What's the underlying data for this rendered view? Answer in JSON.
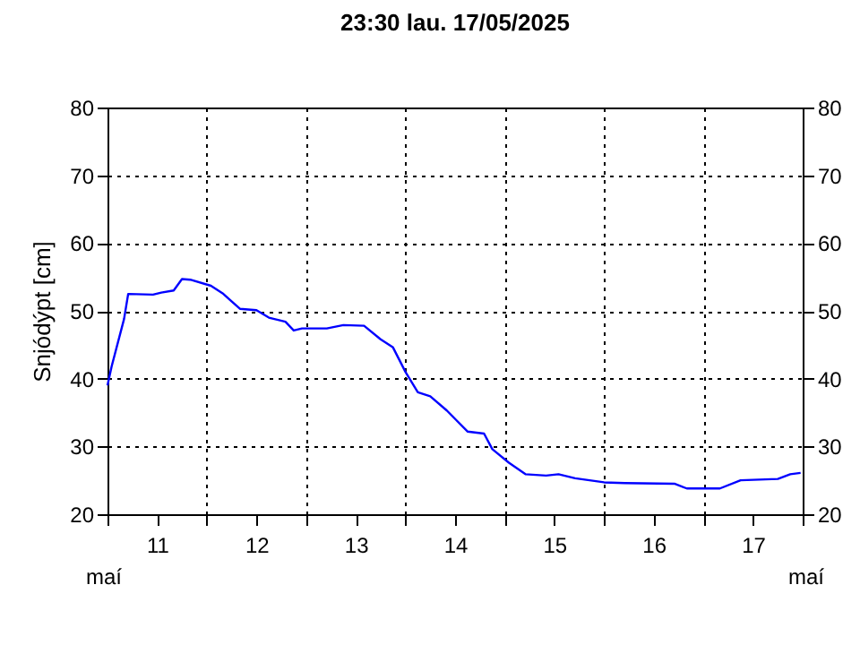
{
  "chart_data": {
    "type": "line",
    "title": "23:30   lau.  17/05/2025",
    "ylabel": "Snjódýpt [cm]",
    "annotations": [
      "maí",
      "maí"
    ],
    "x": [
      "2025-05-11T00:00",
      "2025-05-11T01:00",
      "2025-05-11T04:00",
      "2025-05-11T05:00",
      "2025-05-11T11:00",
      "2025-05-11T13:00",
      "2025-05-11T16:00",
      "2025-05-11T18:00",
      "2025-05-11T20:00",
      "2025-05-12T01:00",
      "2025-05-12T04:00",
      "2025-05-12T08:00",
      "2025-05-12T12:00",
      "2025-05-12T15:00",
      "2025-05-12T19:00",
      "2025-05-12T21:00",
      "2025-05-12T23:00",
      "2025-05-13T05:00",
      "2025-05-13T09:00",
      "2025-05-13T14:00",
      "2025-05-13T18:00",
      "2025-05-13T21:00",
      "2025-05-14T00:00",
      "2025-05-14T03:00",
      "2025-05-14T06:00",
      "2025-05-14T10:00",
      "2025-05-14T15:00",
      "2025-05-14T19:00",
      "2025-05-14T21:00",
      "2025-05-15T01:00",
      "2025-05-15T05:00",
      "2025-05-15T10:00",
      "2025-05-15T13:00",
      "2025-05-15T17:00",
      "2025-05-16T00:00",
      "2025-05-16T05:00",
      "2025-05-16T17:00",
      "2025-05-16T20:00",
      "2025-05-17T04:00",
      "2025-05-17T09:00",
      "2025-05-17T18:00",
      "2025-05-17T21:00",
      "2025-05-17T23:30"
    ],
    "series": [
      {
        "color": "#0000ff",
        "values": [
          39.0,
          41.8,
          48.8,
          52.5,
          52.4,
          52.7,
          53.0,
          54.7,
          54.6,
          53.7,
          52.5,
          50.3,
          50.1,
          49.0,
          48.4,
          47.1,
          47.4,
          47.4,
          47.9,
          47.8,
          45.8,
          44.6,
          41.0,
          38.0,
          37.4,
          35.3,
          32.2,
          31.9,
          29.6,
          27.6,
          25.9,
          25.7,
          25.9,
          25.3,
          24.7,
          24.6,
          24.5,
          23.8,
          23.8,
          25.0,
          25.2,
          25.9,
          26.1
        ]
      }
    ],
    "xlim": [
      "2025-05-11T00:00",
      "2025-05-18T00:00"
    ],
    "xticks": [
      {
        "value": "2025-05-11T00:00",
        "label": null
      },
      {
        "value": "2025-05-11T12:00",
        "label": "11"
      },
      {
        "value": "2025-05-12T00:00",
        "label": null
      },
      {
        "value": "2025-05-12T12:00",
        "label": "12"
      },
      {
        "value": "2025-05-13T00:00",
        "label": null
      },
      {
        "value": "2025-05-13T12:00",
        "label": "13"
      },
      {
        "value": "2025-05-14T00:00",
        "label": null
      },
      {
        "value": "2025-05-14T12:00",
        "label": "14"
      },
      {
        "value": "2025-05-15T00:00",
        "label": null
      },
      {
        "value": "2025-05-15T12:00",
        "label": "15"
      },
      {
        "value": "2025-05-16T00:00",
        "label": null
      },
      {
        "value": "2025-05-16T12:00",
        "label": "16"
      },
      {
        "value": "2025-05-17T00:00",
        "label": null
      },
      {
        "value": "2025-05-17T12:00",
        "label": "17"
      },
      {
        "value": "2025-05-18T00:00",
        "label": null
      }
    ],
    "ylim": [
      20,
      80
    ],
    "yticks": [
      20,
      30,
      40,
      50,
      60,
      70,
      80
    ],
    "y2lim": [
      20,
      80
    ],
    "y2ticks": [
      20,
      30,
      40,
      50,
      60,
      70,
      80
    ],
    "grid": true,
    "line_style": "solid",
    "marker": "none"
  }
}
